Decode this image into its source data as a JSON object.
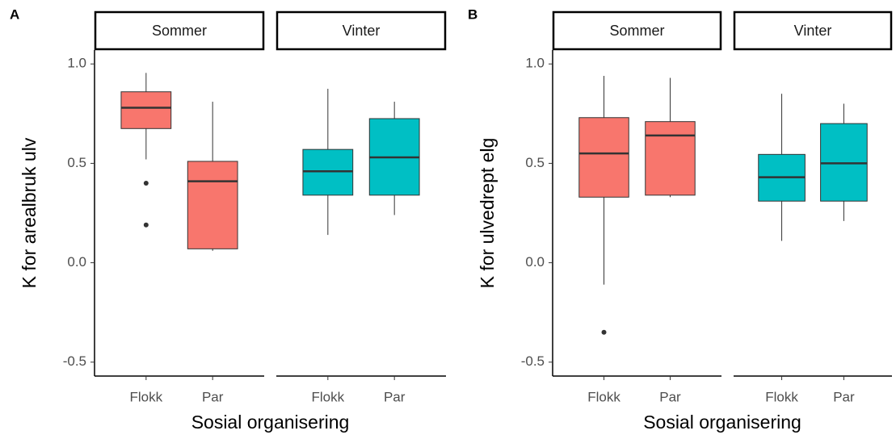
{
  "chart_data": [
    {
      "type": "box",
      "panel_label": "A",
      "ylabel": "K for arealbruk ulv",
      "xlabel": "Sosial organisering",
      "ylim": [
        -0.57,
        1.07
      ],
      "yticks": [
        {
          "value": -0.5,
          "label": "-0.5"
        },
        {
          "value": 0,
          "label": "0.0"
        },
        0.5,
        {
          "value": 1,
          "label": "1.0"
        }
      ],
      "facets": [
        {
          "name": "Sommer",
          "color": "#f8766d",
          "boxes": [
            {
              "category": "Flokk",
              "low": 0.52,
              "q1": 0.675,
              "median": 0.78,
              "q3": 0.86,
              "high": 0.955,
              "outliers": [
                0.4,
                0.19
              ]
            },
            {
              "category": "Par",
              "low": 0.06,
              "q1": 0.07,
              "median": 0.41,
              "q3": 0.51,
              "high": 0.81,
              "outliers": []
            }
          ]
        },
        {
          "name": "Vinter",
          "color": "#00bfc4",
          "boxes": [
            {
              "category": "Flokk",
              "low": 0.14,
              "q1": 0.34,
              "median": 0.46,
              "q3": 0.57,
              "high": 0.875,
              "outliers": []
            },
            {
              "category": "Par",
              "low": 0.24,
              "q1": 0.34,
              "median": 0.53,
              "q3": 0.725,
              "high": 0.81,
              "outliers": []
            }
          ]
        }
      ]
    },
    {
      "type": "box",
      "panel_label": "B",
      "ylabel": "K for ulvedrept elg",
      "xlabel": "Sosial organisering",
      "ylim": [
        -0.57,
        1.07
      ],
      "yticks": [
        {
          "value": -0.5,
          "label": "-0.5"
        },
        {
          "value": 0,
          "label": "0.0"
        },
        0.5,
        {
          "value": 1,
          "label": "1.0"
        }
      ],
      "facets": [
        {
          "name": "Sommer",
          "color": "#f8766d",
          "boxes": [
            {
              "category": "Flokk",
              "low": -0.11,
              "q1": 0.33,
              "median": 0.55,
              "q3": 0.73,
              "high": 0.94,
              "outliers": [
                -0.35
              ]
            },
            {
              "category": "Par",
              "low": 0.33,
              "q1": 0.34,
              "median": 0.64,
              "q3": 0.71,
              "high": 0.93,
              "outliers": []
            }
          ]
        },
        {
          "name": "Vinter",
          "color": "#00bfc4",
          "boxes": [
            {
              "category": "Flokk",
              "low": 0.11,
              "q1": 0.31,
              "median": 0.43,
              "q3": 0.545,
              "high": 0.85,
              "outliers": []
            },
            {
              "category": "Par",
              "low": 0.21,
              "q1": 0.31,
              "median": 0.5,
              "q3": 0.7,
              "high": 0.8,
              "outliers": []
            }
          ]
        }
      ]
    }
  ]
}
